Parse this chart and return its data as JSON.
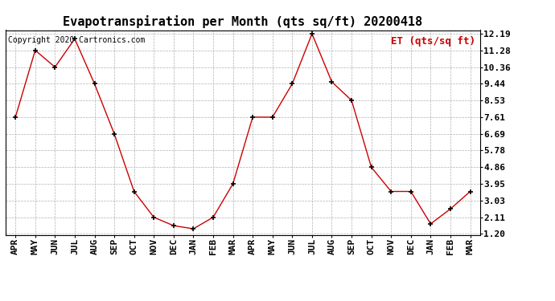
{
  "title": "Evapotranspiration per Month (qts sq/ft) 20200418",
  "copyright_text": "Copyright 2020 Cartronics.com",
  "legend_label": "ET (qts/sq ft)",
  "months": [
    "APR",
    "MAY",
    "JUN",
    "JUL",
    "AUG",
    "SEP",
    "OCT",
    "NOV",
    "DEC",
    "JAN",
    "FEB",
    "MAR",
    "APR",
    "MAY",
    "JUN",
    "JUL",
    "AUG",
    "SEP",
    "OCT",
    "NOV",
    "DEC",
    "JAN",
    "FEB",
    "MAR"
  ],
  "values": [
    7.61,
    11.28,
    10.36,
    11.91,
    9.44,
    6.69,
    3.53,
    2.11,
    1.65,
    1.48,
    2.11,
    3.95,
    7.61,
    7.61,
    9.44,
    12.19,
    9.55,
    8.53,
    4.86,
    3.53,
    3.53,
    1.75,
    2.57,
    3.53
  ],
  "ymin": 1.2,
  "ymax": 12.19,
  "yticks": [
    1.2,
    2.11,
    3.03,
    3.95,
    4.86,
    5.78,
    6.69,
    7.61,
    8.53,
    9.44,
    10.36,
    11.28,
    12.19
  ],
  "line_color": "#cc0000",
  "marker_color": "#000000",
  "background_color": "#ffffff",
  "grid_color": "#b0b0b0",
  "title_fontsize": 11,
  "tick_fontsize": 8,
  "copyright_fontsize": 7,
  "legend_fontsize": 9
}
